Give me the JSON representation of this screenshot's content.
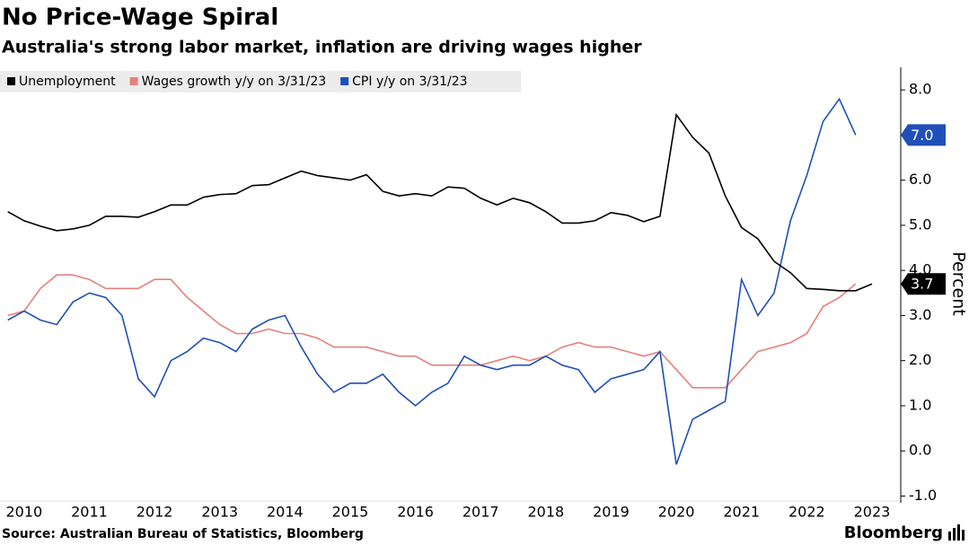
{
  "chart_data": {
    "type": "line",
    "title": "No Price-Wage Spiral",
    "subtitle": "Australia's strong labor market, inflation are driving wages higher",
    "ylabel": "Percent",
    "source": "Source: Australian Bureau of Statistics, Bloomberg",
    "logo": "Bloomberg",
    "x": [
      2009.75,
      2010,
      2010.25,
      2010.5,
      2010.75,
      2011,
      2011.25,
      2011.5,
      2011.75,
      2012,
      2012.25,
      2012.5,
      2012.75,
      2013,
      2013.25,
      2013.5,
      2013.75,
      2014,
      2014.25,
      2014.5,
      2014.75,
      2015,
      2015.25,
      2015.5,
      2015.75,
      2016,
      2016.25,
      2016.5,
      2016.75,
      2017,
      2017.25,
      2017.5,
      2017.75,
      2018,
      2018.25,
      2018.5,
      2018.75,
      2019,
      2019.25,
      2019.5,
      2019.75,
      2020,
      2020.25,
      2020.5,
      2020.75,
      2021,
      2021.25,
      2021.5,
      2021.75,
      2022,
      2022.25,
      2022.5,
      2022.75,
      2023
    ],
    "series": [
      {
        "name": "Unemployment",
        "color": "#000000",
        "values": [
          5.3,
          5.1,
          4.98,
          4.88,
          4.92,
          5.0,
          5.2,
          5.2,
          5.18,
          5.3,
          5.45,
          5.45,
          5.62,
          5.68,
          5.7,
          5.88,
          5.9,
          6.05,
          6.2,
          6.1,
          6.05,
          6.0,
          6.12,
          5.75,
          5.65,
          5.7,
          5.65,
          5.85,
          5.82,
          5.6,
          5.45,
          5.6,
          5.5,
          5.3,
          5.05,
          5.05,
          5.1,
          5.28,
          5.22,
          5.08,
          5.2,
          7.45,
          6.95,
          6.6,
          5.65,
          4.95,
          4.7,
          4.2,
          3.95,
          3.6,
          3.58,
          3.55,
          3.55,
          3.7
        ],
        "value_labels": [
          null,
          null,
          null,
          null,
          null,
          null,
          null,
          null,
          null,
          null,
          null,
          null,
          null,
          null,
          null,
          null,
          null,
          null,
          null,
          null,
          null,
          null,
          null,
          null,
          null,
          null,
          null,
          null,
          null,
          null,
          null,
          null,
          null,
          null,
          null,
          null,
          null,
          null,
          null,
          null,
          null,
          null,
          null,
          null,
          null,
          null,
          null,
          null,
          null,
          null,
          null,
          null,
          null,
          "3.7"
        ]
      },
      {
        "name": "Wages growth y/y on 3/31/23",
        "color": "#e8807a",
        "values": [
          3.0,
          3.1,
          3.6,
          3.9,
          3.9,
          3.8,
          3.6,
          3.6,
          3.6,
          3.8,
          3.8,
          3.4,
          3.1,
          2.8,
          2.6,
          2.6,
          2.7,
          2.6,
          2.6,
          2.5,
          2.3,
          2.3,
          2.3,
          2.2,
          2.1,
          2.1,
          1.9,
          1.9,
          1.9,
          1.9,
          2.0,
          2.1,
          2.0,
          2.1,
          2.3,
          2.4,
          2.3,
          2.3,
          2.2,
          2.1,
          2.2,
          1.8,
          1.4,
          1.4,
          1.4,
          1.8,
          2.2,
          2.3,
          2.4,
          2.6,
          3.2,
          3.4,
          3.7,
          null
        ]
      },
      {
        "name": "CPI y/y on 3/31/23",
        "color": "#1f4fb8",
        "values": [
          2.9,
          3.1,
          2.9,
          2.8,
          3.3,
          3.5,
          3.4,
          3.0,
          1.6,
          1.2,
          2.0,
          2.2,
          2.5,
          2.4,
          2.2,
          2.7,
          2.9,
          3.0,
          2.3,
          1.7,
          1.3,
          1.5,
          1.5,
          1.7,
          1.3,
          1.0,
          1.3,
          1.5,
          2.1,
          1.9,
          1.8,
          1.9,
          1.9,
          2.1,
          1.9,
          1.8,
          1.3,
          1.6,
          1.7,
          1.8,
          2.2,
          -0.3,
          0.7,
          0.9,
          1.1,
          3.8,
          3.0,
          3.5,
          5.1,
          6.1,
          7.3,
          7.8,
          7.0,
          null
        ],
        "value_labels": [
          null,
          null,
          null,
          null,
          null,
          null,
          null,
          null,
          null,
          null,
          null,
          null,
          null,
          null,
          null,
          null,
          null,
          null,
          null,
          null,
          null,
          null,
          null,
          null,
          null,
          null,
          null,
          null,
          null,
          null,
          null,
          null,
          null,
          null,
          null,
          null,
          null,
          null,
          null,
          null,
          null,
          null,
          null,
          null,
          null,
          null,
          null,
          null,
          null,
          null,
          null,
          null,
          "7.0",
          null
        ]
      }
    ],
    "xlim": [
      2009.63,
      2023.4
    ],
    "xticks": [
      2010,
      2011,
      2012,
      2013,
      2014,
      2015,
      2016,
      2017,
      2018,
      2019,
      2020,
      2021,
      2022,
      2023
    ],
    "ylim": [
      -1.15,
      8.5
    ],
    "yticks": [
      {
        "value": -1,
        "label": "-1.0"
      },
      {
        "value": 0,
        "label": "0.0"
      },
      {
        "value": 1,
        "label": "1.0"
      },
      {
        "value": 2,
        "label": "2.0"
      },
      {
        "value": 3,
        "label": "3.0"
      },
      {
        "value": 4,
        "label": "4.0"
      },
      {
        "value": 5,
        "label": "5.0"
      },
      {
        "value": 6,
        "label": "6.0"
      },
      {
        "value": 7,
        "label": "7.0"
      },
      {
        "value": 8,
        "label": "8.0"
      }
    ],
    "legend": "top-left"
  }
}
